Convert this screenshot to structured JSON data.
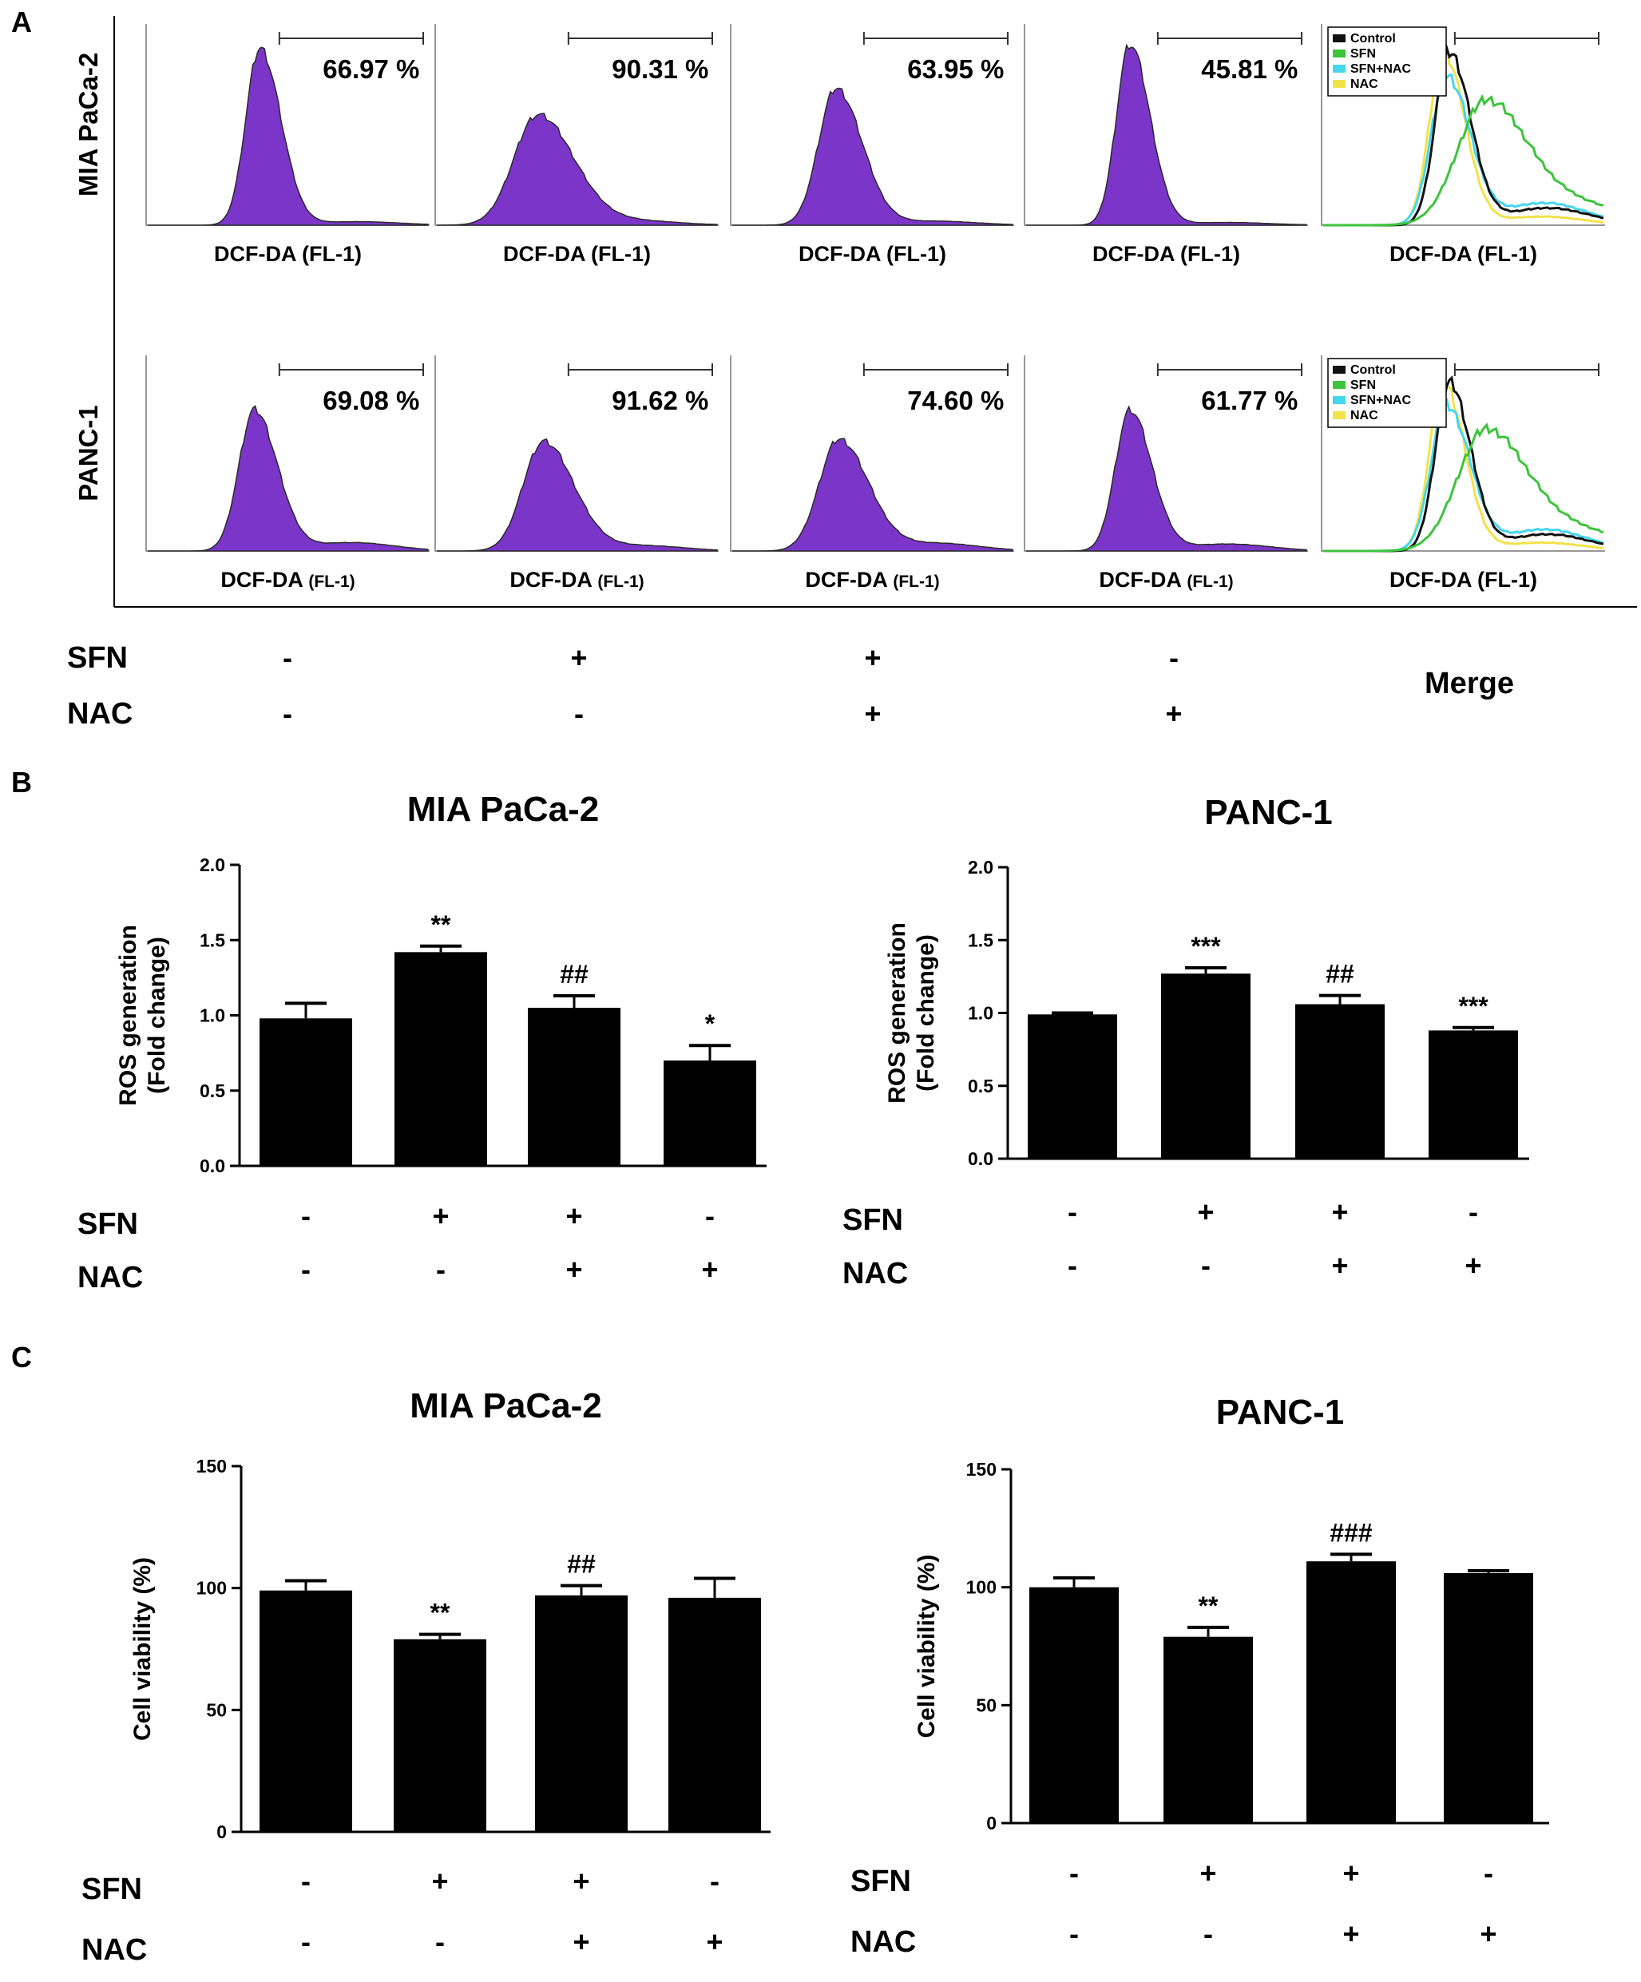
{
  "panel_labels": {
    "a": "A",
    "b": "B",
    "c": "C"
  },
  "colors": {
    "histogram": "#7b35c9",
    "control": "#111111",
    "sfn": "#3cc43c",
    "sfn_nac": "#45d6ee",
    "nac": "#f2e24a",
    "bar": "#000000"
  },
  "panel_a": {
    "rows": [
      {
        "name": "MIA PaCa-2",
        "percents": [
          "66.97 %",
          "90.31 %",
          "63.95 %",
          "45.81 %"
        ],
        "xlabels": [
          "DCF-DA (FL-1)",
          "DCF-DA (FL-1)",
          "DCF-DA (FL-1)",
          "DCF-DA (FL-1)",
          "DCF-DA (FL-1)"
        ]
      },
      {
        "name": "PANC-1",
        "percents": [
          "69.08 %",
          "91.62 %",
          "74.60 %",
          "61.77 %"
        ],
        "xlabels": [
          "DCF-DA",
          "DCF-DA",
          "DCF-DA",
          "DCF-DA",
          "DCF-DA (FL-1)"
        ],
        "xlabel_suffixes": [
          "(FL-1)",
          "(FL-1)",
          "(FL-1)",
          "(FL-1)"
        ]
      }
    ],
    "legend": [
      "Control",
      "SFN",
      "SFN+NAC",
      "NAC"
    ],
    "treatment": {
      "sfn_label": "SFN",
      "nac_label": "NAC",
      "sfn": [
        "-",
        "+",
        "+",
        "-"
      ],
      "nac": [
        "-",
        "-",
        "+",
        "+"
      ],
      "merge_label": "Merge"
    }
  },
  "chart_data": [
    {
      "type": "bar",
      "panel": "B",
      "title": "MIA PaCa-2",
      "ylabel_lines": [
        "ROS generation",
        "(Fold change)"
      ],
      "ylim": [
        0,
        2.0
      ],
      "yticks": [
        "0.0",
        "0.5",
        "1.0",
        "1.5",
        "2.0"
      ],
      "categories": [
        "-/-",
        "+/-",
        "+/+",
        "-/+"
      ],
      "values": [
        0.98,
        1.42,
        1.05,
        0.7
      ],
      "errors": [
        0.1,
        0.04,
        0.08,
        0.1
      ],
      "significance": [
        "",
        "**",
        "##",
        "*"
      ],
      "sfn_label": "SFN",
      "nac_label": "NAC",
      "sfn": [
        "-",
        "+",
        "+",
        "-"
      ],
      "nac": [
        "-",
        "-",
        "+",
        "+"
      ]
    },
    {
      "type": "bar",
      "panel": "B",
      "title": "PANC-1",
      "ylabel_lines": [
        "ROS generation",
        "(Fold change)"
      ],
      "ylim": [
        0,
        2.0
      ],
      "yticks": [
        "0.0",
        "0.5",
        "1.0",
        "1.5",
        "2.0"
      ],
      "categories": [
        "-/-",
        "+/-",
        "+/+",
        "-/+"
      ],
      "values": [
        0.99,
        1.27,
        1.06,
        0.88
      ],
      "errors": [
        0.01,
        0.04,
        0.06,
        0.02
      ],
      "significance": [
        "",
        "***",
        "##",
        "***"
      ],
      "sfn_label": "SFN",
      "nac_label": "NAC",
      "sfn": [
        "-",
        "+",
        "+",
        "-"
      ],
      "nac": [
        "-",
        "-",
        "+",
        "+"
      ]
    },
    {
      "type": "bar",
      "panel": "C",
      "title": "MIA PaCa-2",
      "ylabel_lines": [
        "Cell viability (%)"
      ],
      "ylim": [
        0,
        150
      ],
      "yticks": [
        "0",
        "50",
        "100",
        "150"
      ],
      "categories": [
        "-/-",
        "+/-",
        "+/+",
        "-/+"
      ],
      "values": [
        99,
        79,
        97,
        96
      ],
      "errors": [
        4,
        2,
        4,
        8
      ],
      "significance": [
        "",
        "**",
        "##",
        ""
      ],
      "sfn_label": "SFN",
      "nac_label": "NAC",
      "sfn": [
        "-",
        "+",
        "+",
        "-"
      ],
      "nac": [
        "-",
        "-",
        "+",
        "+"
      ]
    },
    {
      "type": "bar",
      "panel": "C",
      "title": "PANC-1",
      "ylabel_lines": [
        "Cell viability (%)"
      ],
      "ylim": [
        0,
        150
      ],
      "yticks": [
        "0",
        "50",
        "100",
        "150"
      ],
      "categories": [
        "-/-",
        "+/-",
        "+/+",
        "-/+"
      ],
      "values": [
        100,
        79,
        111,
        106
      ],
      "errors": [
        4,
        4,
        3,
        1
      ],
      "significance": [
        "",
        "**",
        "###",
        ""
      ],
      "sfn_label": "SFN",
      "nac_label": "NAC",
      "sfn": [
        "-",
        "+",
        "+",
        "-"
      ],
      "nac": [
        "-",
        "-",
        "+",
        "+"
      ]
    }
  ]
}
